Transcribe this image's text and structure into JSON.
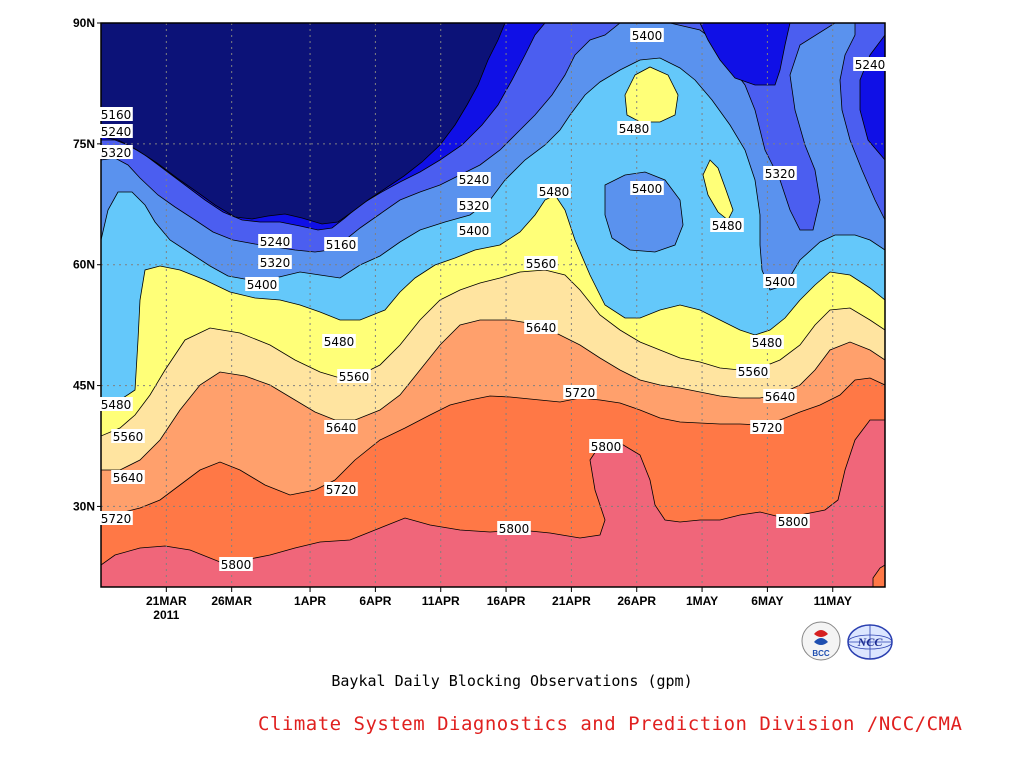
{
  "chart_data": {
    "type": "contour",
    "title": "Baykal Daily Blocking Observations (gpm)",
    "x_ticks": [
      "21MAR",
      "26MAR",
      "1APR",
      "6APR",
      "11APR",
      "16APR",
      "21APR",
      "26APR",
      "1MAY",
      "6MAY",
      "11MAY"
    ],
    "x_tick_sublabel": {
      "21MAR": "2011"
    },
    "y_ticks": [
      "90N",
      "75N",
      "60N",
      "45N",
      "30N"
    ],
    "x_range": [
      "2011-03-16",
      "2011-05-15"
    ],
    "y_range": [
      20,
      90
    ],
    "grid": true,
    "contour_levels": [
      5160,
      5240,
      5320,
      5400,
      5480,
      5560,
      5640,
      5720,
      5800
    ],
    "contour_colors": [
      "#0c1278",
      "#1010e6",
      "#4b5ef0",
      "#5a92ee",
      "#64c8fa",
      "#ffff78",
      "#ffe4a0",
      "#ffa06c",
      "#ff7846",
      "#f0667a"
    ],
    "contour_labels": [
      "5160",
      "5240",
      "5320",
      "5400",
      "5480",
      "5560",
      "5640",
      "5720",
      "5800"
    ]
  },
  "caption": "Baykal Daily Blocking Observations (gpm)",
  "credit": "Climate System Diagnostics and Prediction Division /NCC/CMA",
  "logos": {
    "left": "BCC",
    "right": "NCC"
  }
}
